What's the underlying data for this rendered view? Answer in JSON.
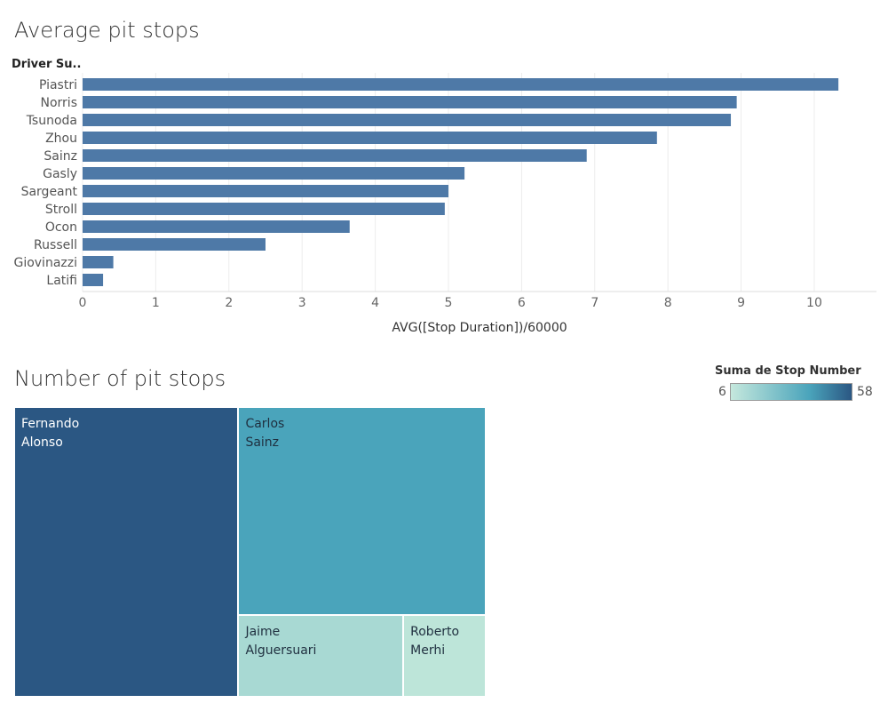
{
  "bar_section": {
    "title": "Average pit stops"
  },
  "tree_section": {
    "title": "Number of pit stops"
  },
  "legend": {
    "title": "Suma de Stop Number",
    "min_label": "6",
    "max_label": "58",
    "color_low": "#c5e8dd",
    "color_mid": "#4aa4bb",
    "color_high": "#2b5783"
  },
  "chart_data": [
    {
      "type": "bar",
      "orientation": "horizontal",
      "title": "Average pit stops",
      "ylabel": "Driver Su..",
      "xlabel": "AVG([Stop Duration])/60000",
      "categories": [
        "Piastri",
        "Norris",
        "Tsunoda",
        "Zhou",
        "Sainz",
        "Gasly",
        "Sargeant",
        "Stroll",
        "Ocon",
        "Russell",
        "Giovinazzi",
        "Latifi"
      ],
      "values": [
        10.33,
        8.94,
        8.86,
        7.85,
        6.89,
        5.22,
        5.0,
        4.95,
        3.65,
        2.5,
        0.42,
        0.28
      ],
      "xlim": [
        0,
        10.85
      ],
      "xticks": [
        "0",
        "1",
        "2",
        "3",
        "4",
        "5",
        "6",
        "7",
        "8",
        "9",
        "10"
      ],
      "grid": true,
      "bar_color": "#4e79a7"
    },
    {
      "type": "treemap",
      "title": "Number of pit stops",
      "color_by": "Suma de Stop Number",
      "items": [
        {
          "name": "Fernando Alonso",
          "label": "Fernando\nAlonso",
          "value": 58,
          "color": "#2b5783",
          "text_color": "#ffffff"
        },
        {
          "name": "Carlos Sainz",
          "label": "Carlos\nSainz",
          "value": 46,
          "color": "#4aa4bb",
          "text_color": "#1f2f3f"
        },
        {
          "name": "Jaime Alguersuari",
          "label": "Jaime\nAlguersuari",
          "value": 12,
          "color": "#a8d9d3",
          "text_color": "#1f2f3f"
        },
        {
          "name": "Roberto Merhi",
          "label": "Roberto\nMerhi",
          "value": 6,
          "color": "#bde5d9",
          "text_color": "#1f2f3f"
        }
      ]
    }
  ]
}
